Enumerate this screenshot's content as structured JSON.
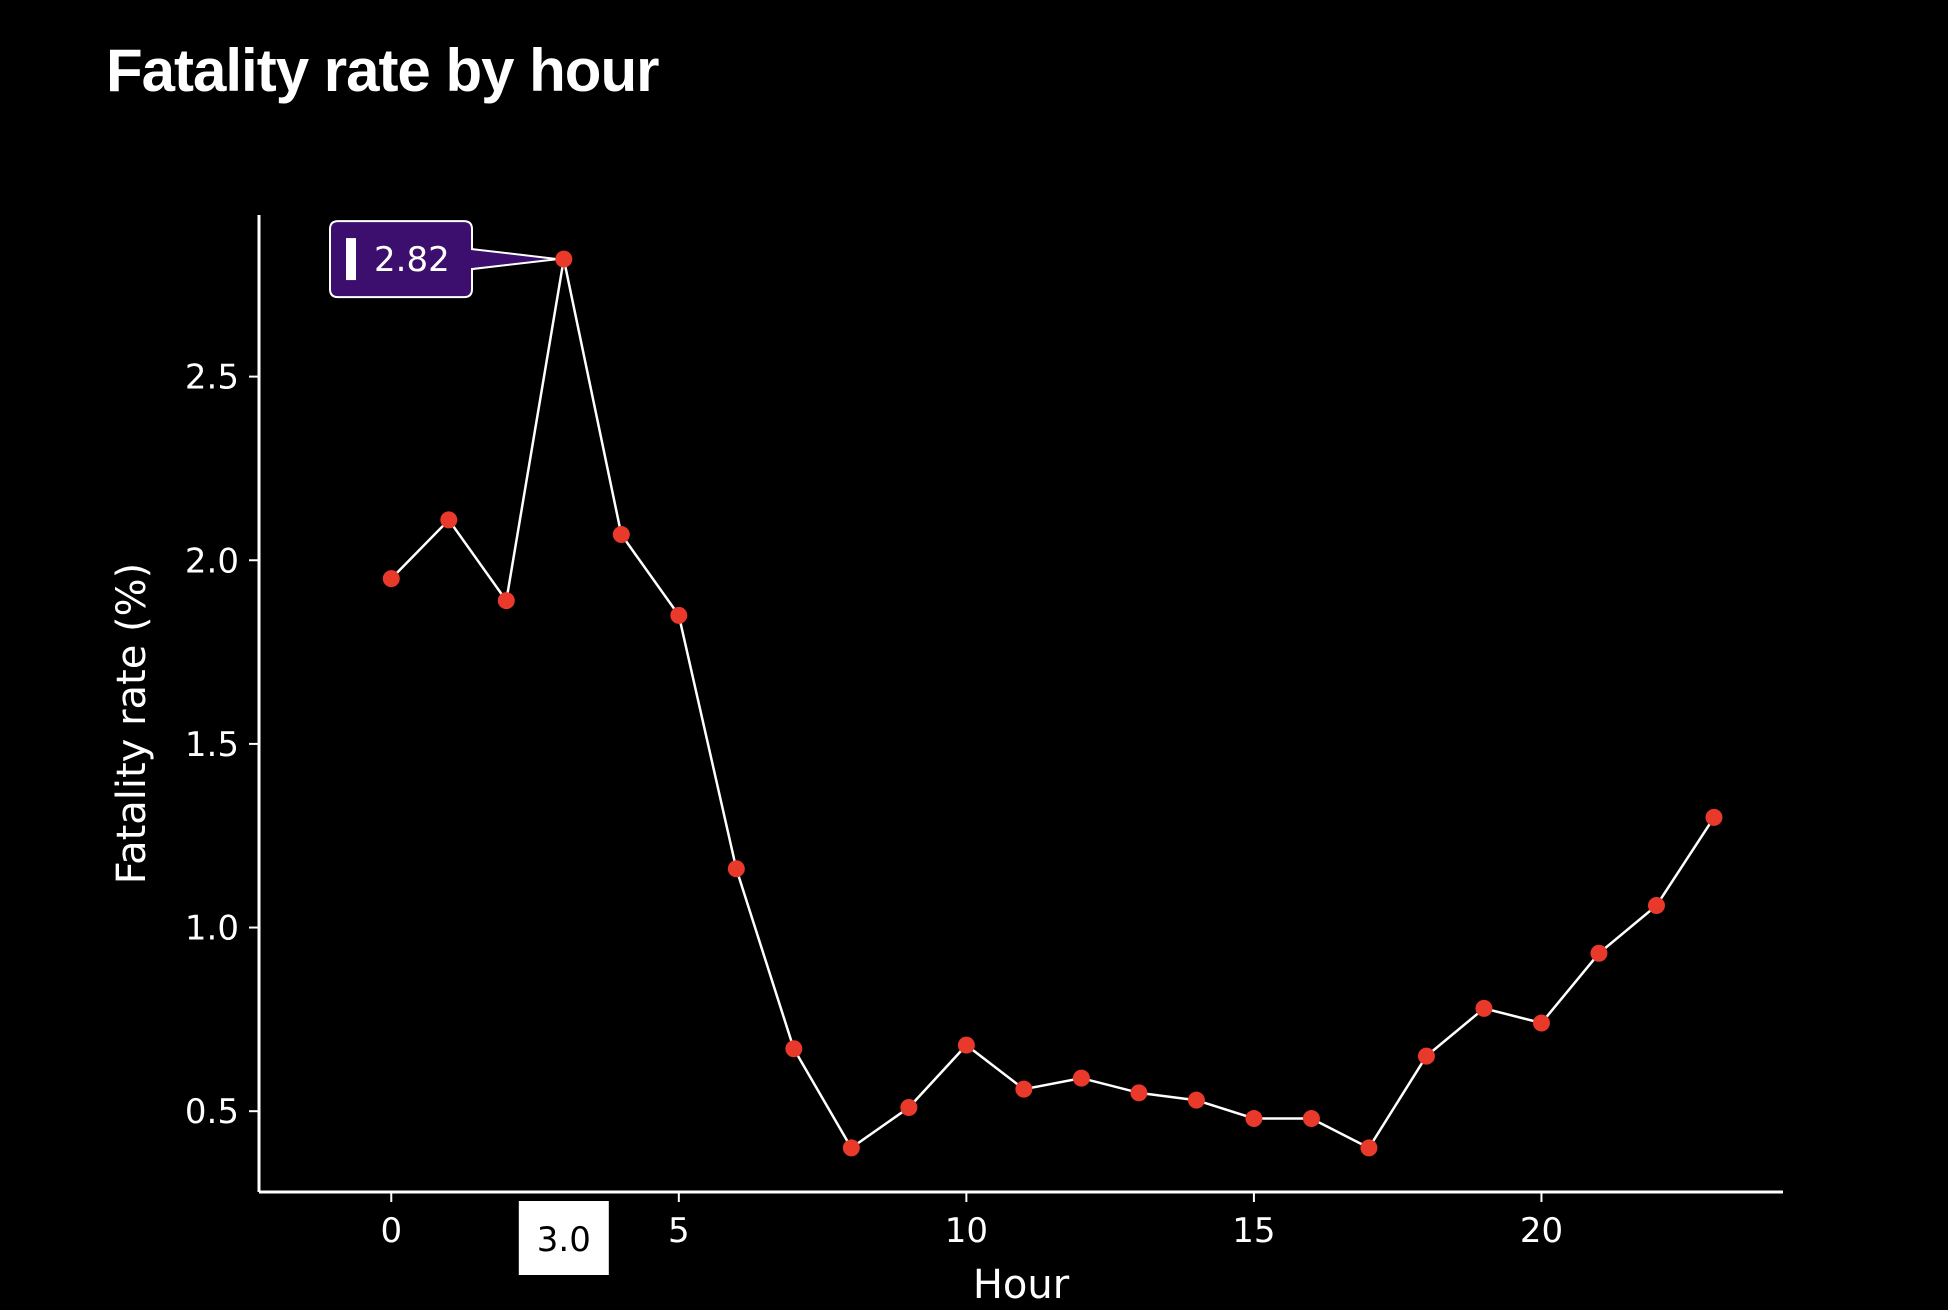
{
  "title": "Fatality rate by hour",
  "colors": {
    "background": "#000000",
    "axis": "#ffffff",
    "line": "#ffffff",
    "point": "#e8392a",
    "tooltip_bg": "#3c0f6e",
    "tooltip_border": "#ffffff",
    "crosshair_label_bg": "#ffffff"
  },
  "tooltip": {
    "value_label": "2.82",
    "hour": 3
  },
  "crosshair": {
    "label": "3.0"
  },
  "chart_data": {
    "type": "line",
    "title": "Fatality rate by hour",
    "xlabel": "Hour",
    "ylabel": "Fatality rate (%)",
    "xlim": [
      -2.3,
      24.2
    ],
    "ylim": [
      0.28,
      2.94
    ],
    "x_ticks": [
      0,
      5,
      10,
      15,
      20
    ],
    "y_ticks": [
      0.5,
      1.0,
      1.5,
      2.0,
      2.5
    ],
    "x_tick_labels": [
      "0",
      "5",
      "10",
      "15",
      "20"
    ],
    "y_tick_labels": [
      "0.5",
      "1.0",
      "1.5",
      "2.0",
      "2.5"
    ],
    "grid": false,
    "x": [
      0,
      1,
      2,
      3,
      4,
      5,
      6,
      7,
      8,
      9,
      10,
      11,
      12,
      13,
      14,
      15,
      16,
      17,
      18,
      19,
      20,
      21,
      22,
      23
    ],
    "y": [
      1.95,
      2.11,
      1.89,
      2.82,
      2.07,
      1.85,
      1.16,
      0.67,
      0.4,
      0.51,
      0.68,
      0.56,
      0.59,
      0.55,
      0.53,
      0.48,
      0.48,
      0.4,
      0.65,
      0.78,
      0.74,
      0.93,
      1.06,
      1.3
    ]
  }
}
